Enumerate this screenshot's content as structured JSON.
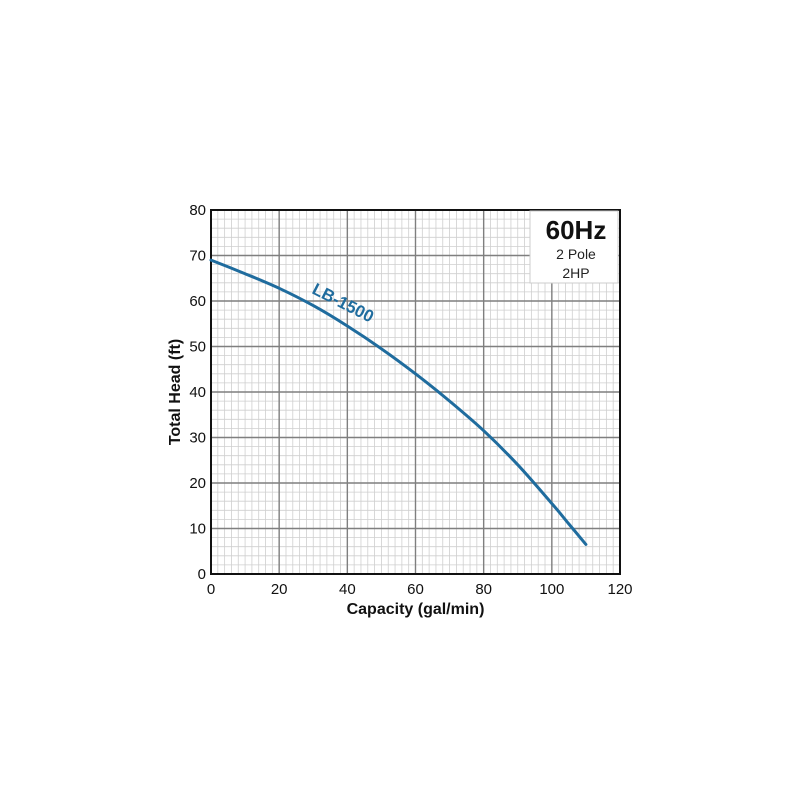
{
  "chart_data": {
    "type": "line",
    "xlabel": "Capacity (gal/min)",
    "ylabel": "Total Head (ft)",
    "xlim": [
      0,
      120
    ],
    "ylim": [
      0,
      80
    ],
    "x_ticks": [
      0,
      20,
      40,
      60,
      80,
      100,
      120
    ],
    "y_ticks": [
      0,
      10,
      20,
      30,
      40,
      50,
      60,
      70,
      80
    ],
    "grid": true,
    "legend_box": {
      "title": "60Hz",
      "lines": [
        "2 Pole",
        "2HP"
      ],
      "placement": "top-right"
    },
    "series": [
      {
        "name": "LB-1500",
        "color": "#1f6c9e",
        "x": [
          0,
          10,
          20,
          30,
          40,
          50,
          60,
          70,
          80,
          90,
          100,
          105,
          110
        ],
        "y": [
          69,
          66,
          62.8,
          59,
          54.5,
          49.5,
          44,
          38,
          31.5,
          24,
          15.5,
          11,
          6.5
        ]
      }
    ]
  }
}
